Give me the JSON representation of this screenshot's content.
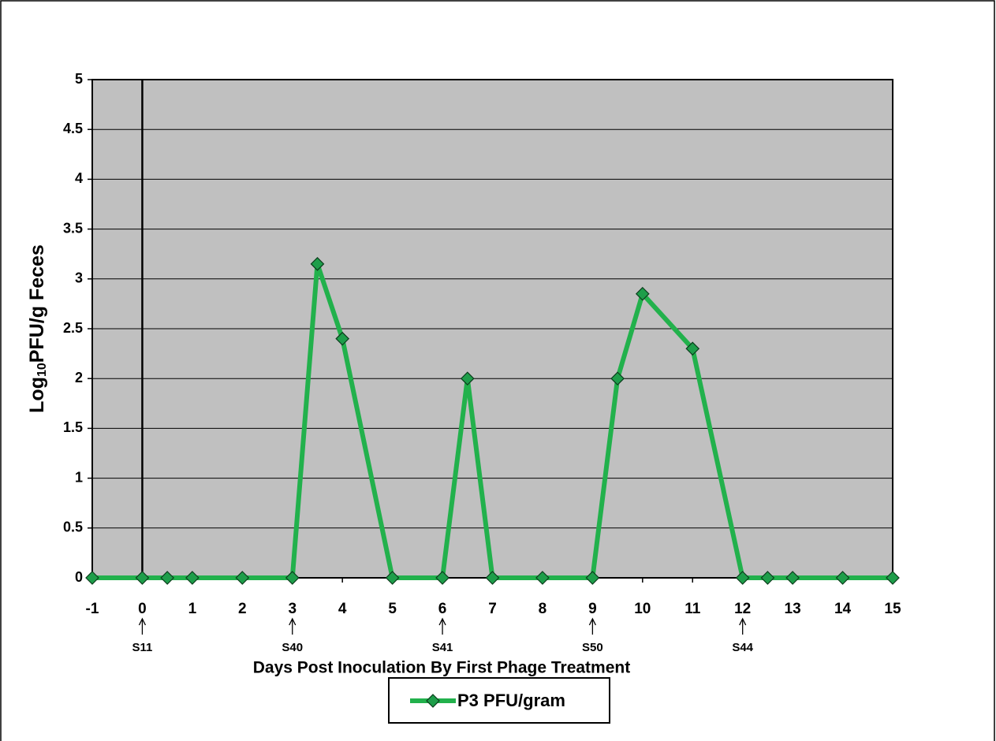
{
  "chart_data": {
    "type": "line",
    "x_label": "Days Post Inoculation By First Phage Treatment",
    "y_label": {
      "main": "Log",
      "sub": "10",
      "rest": "PFU/g Feces"
    },
    "x": [
      -1,
      0,
      0.5,
      1,
      2,
      3,
      3.5,
      4,
      5,
      6,
      6.5,
      7,
      8,
      9,
      9.5,
      10,
      11,
      12,
      12.5,
      13,
      14,
      15
    ],
    "series": [
      {
        "name": "P3 PFU/gram",
        "color": "#22b14c",
        "values": [
          0,
          0,
          0,
          0,
          0,
          0,
          3.15,
          2.4,
          0,
          0,
          2,
          0,
          0,
          0,
          2,
          2.85,
          2.3,
          0,
          0,
          0,
          0,
          0
        ]
      }
    ],
    "xlim": [
      -1,
      15
    ],
    "xticks": [
      -1,
      0,
      1,
      2,
      3,
      4,
      5,
      6,
      7,
      8,
      9,
      10,
      11,
      12,
      13,
      14,
      15
    ],
    "ylim": [
      0,
      5
    ],
    "yticks": [
      0,
      0.5,
      1,
      1.5,
      2,
      2.5,
      3,
      3.5,
      4,
      4.5,
      5
    ],
    "grid": true,
    "annotations": [
      {
        "x": 0,
        "label": "S11"
      },
      {
        "x": 3,
        "label": "S40"
      },
      {
        "x": 6,
        "label": "S41"
      },
      {
        "x": 9,
        "label": "S50"
      },
      {
        "x": 12,
        "label": "S44"
      }
    ],
    "legend": "bottom"
  }
}
